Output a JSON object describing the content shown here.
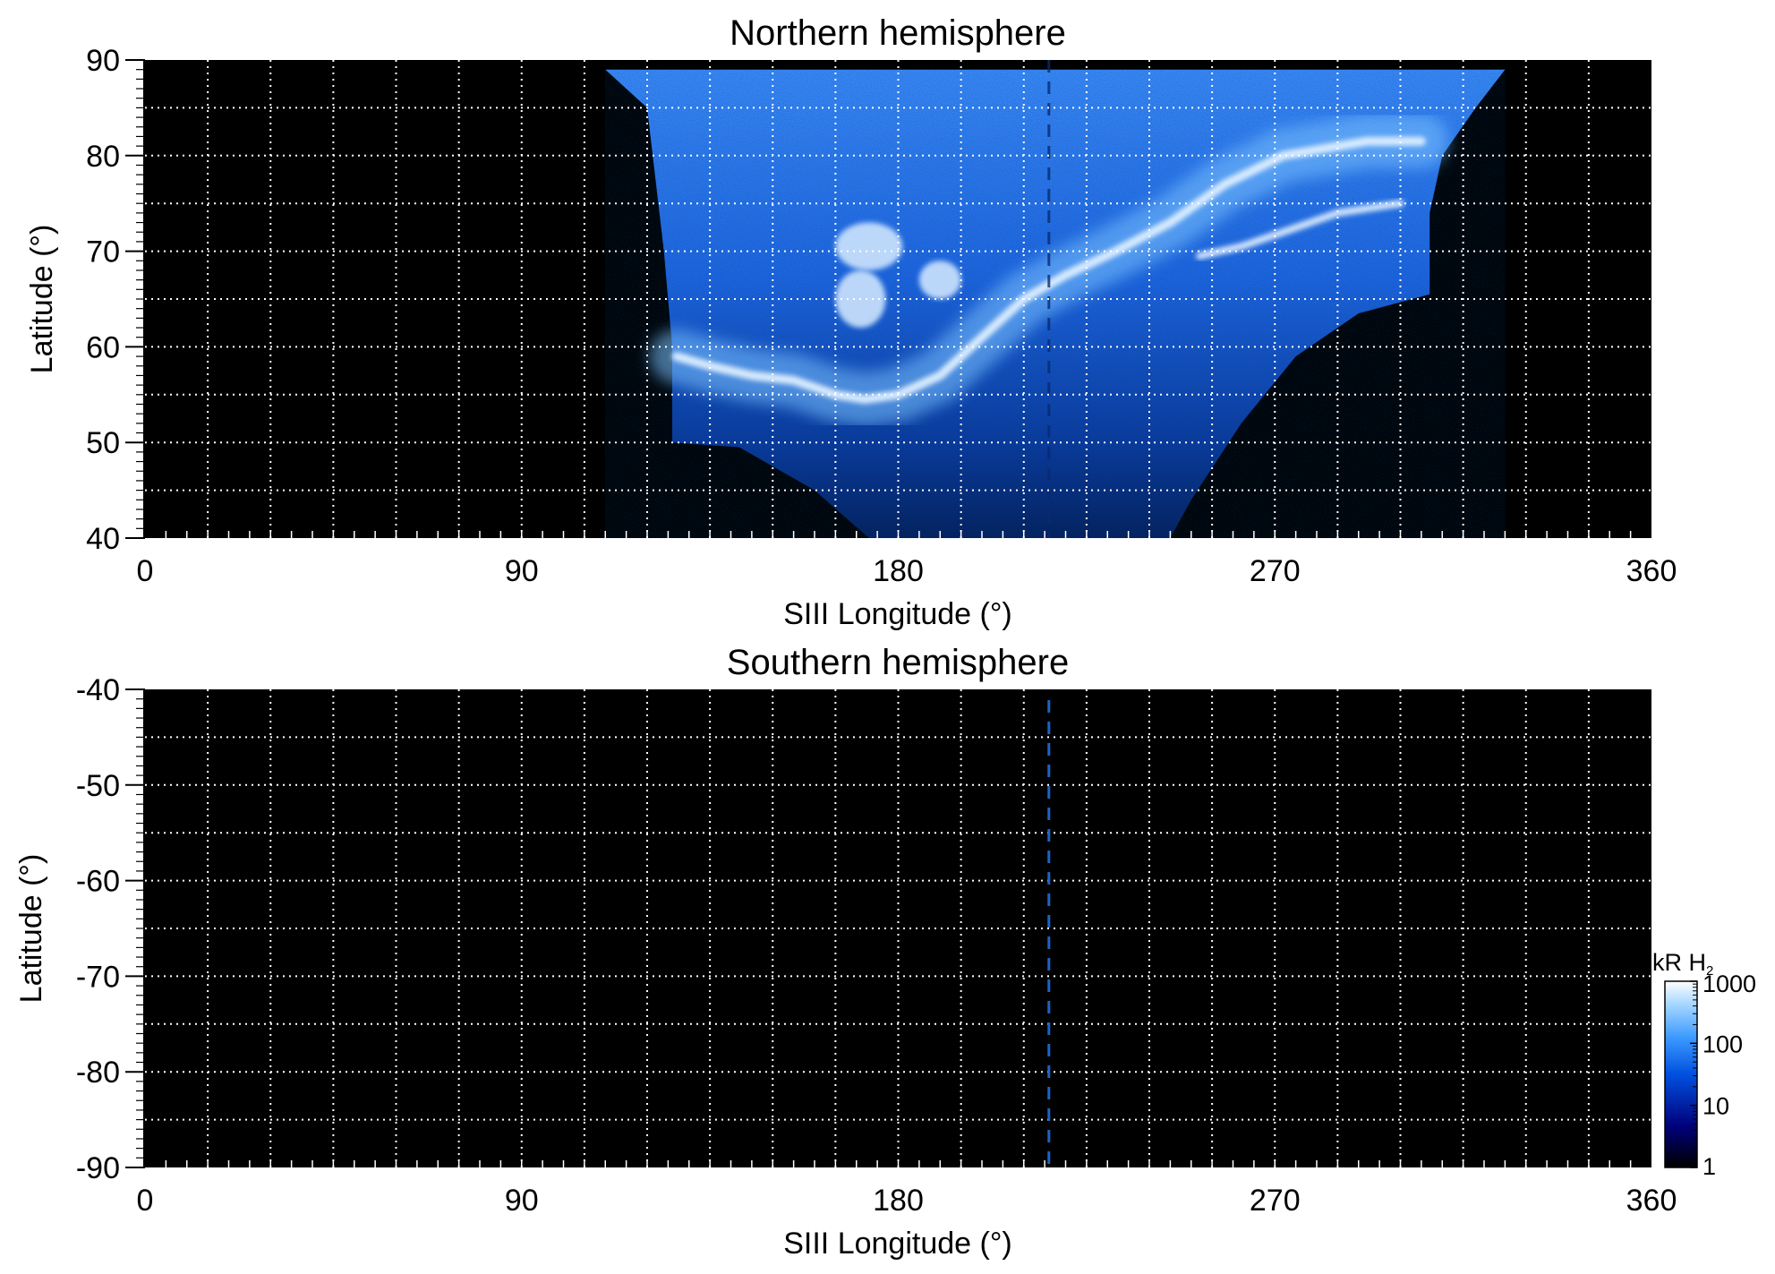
{
  "chart_data": [
    {
      "type": "heatmap",
      "title": "Northern hemisphere",
      "xlabel": "SIII Longitude (°)",
      "ylabel": "Latitude (°)",
      "xlim": [
        0,
        360
      ],
      "ylim": [
        40,
        90
      ],
      "x_ticks": [
        0,
        90,
        180,
        270,
        360
      ],
      "y_ticks": [
        40,
        50,
        60,
        70,
        80,
        90
      ],
      "grid": true,
      "grid_x_step": 15,
      "grid_y_step": 5,
      "background": "#000000",
      "coverage": {
        "description_units": "longitude (°) vs latitude (°)",
        "outline": [
          [
            110,
            89
          ],
          [
            325,
            89
          ],
          [
            318,
            85
          ],
          [
            310,
            80
          ],
          [
            307,
            74
          ],
          [
            307,
            65.5
          ],
          [
            290,
            63.5
          ],
          [
            275,
            59
          ],
          [
            262,
            52
          ],
          [
            250,
            44
          ],
          [
            245,
            40
          ],
          [
            173,
            40
          ],
          [
            160,
            45
          ],
          [
            142,
            49.5
          ],
          [
            126,
            50
          ],
          [
            126,
            60
          ],
          [
            124,
            70
          ],
          [
            120,
            85
          ],
          [
            110,
            89
          ]
        ],
        "main_oval": [
          [
            127,
            59
          ],
          [
            135,
            58
          ],
          [
            145,
            57
          ],
          [
            155,
            56.5
          ],
          [
            165,
            55
          ],
          [
            172,
            54.5
          ],
          [
            180,
            55
          ],
          [
            190,
            57
          ],
          [
            200,
            61
          ],
          [
            210,
            65
          ],
          [
            220,
            67.5
          ],
          [
            232,
            70
          ],
          [
            245,
            73
          ],
          [
            258,
            77
          ],
          [
            272,
            80
          ],
          [
            292,
            81.5
          ],
          [
            305,
            81.5
          ]
        ],
        "secondary_arc": [
          [
            252,
            69.5
          ],
          [
            262,
            70.5
          ],
          [
            272,
            72
          ],
          [
            285,
            74
          ],
          [
            300,
            75
          ]
        ],
        "bright_spots": [
          [
            173,
            70.5,
            8,
            2.5
          ],
          [
            171,
            65,
            6,
            3
          ],
          [
            190,
            67,
            5,
            2
          ]
        ]
      },
      "dashed_meridian_lon": 216
    },
    {
      "type": "heatmap",
      "title": "Southern hemisphere",
      "xlabel": "SIII Longitude (°)",
      "ylabel": "Latitude (°)",
      "xlim": [
        0,
        360
      ],
      "ylim": [
        -90,
        -40
      ],
      "x_ticks": [
        0,
        90,
        180,
        270,
        360
      ],
      "y_ticks": [
        -40,
        -50,
        -60,
        -70,
        -80,
        -90
      ],
      "grid": true,
      "grid_x_step": 15,
      "grid_y_step": 5,
      "background": "#000000",
      "dashed_meridian_lon": 216,
      "dashed_meridian_color": "#1e63c8"
    }
  ],
  "colorbar": {
    "label": "kR H",
    "label_subscript": "2",
    "scale": "log",
    "range": [
      1,
      1000
    ],
    "ticks": [
      "1",
      "10",
      "100",
      "1000"
    ],
    "stops": [
      "#000000",
      "#00007a",
      "#0050e0",
      "#3d9bff",
      "#a8d8ff",
      "#ffffff"
    ]
  }
}
